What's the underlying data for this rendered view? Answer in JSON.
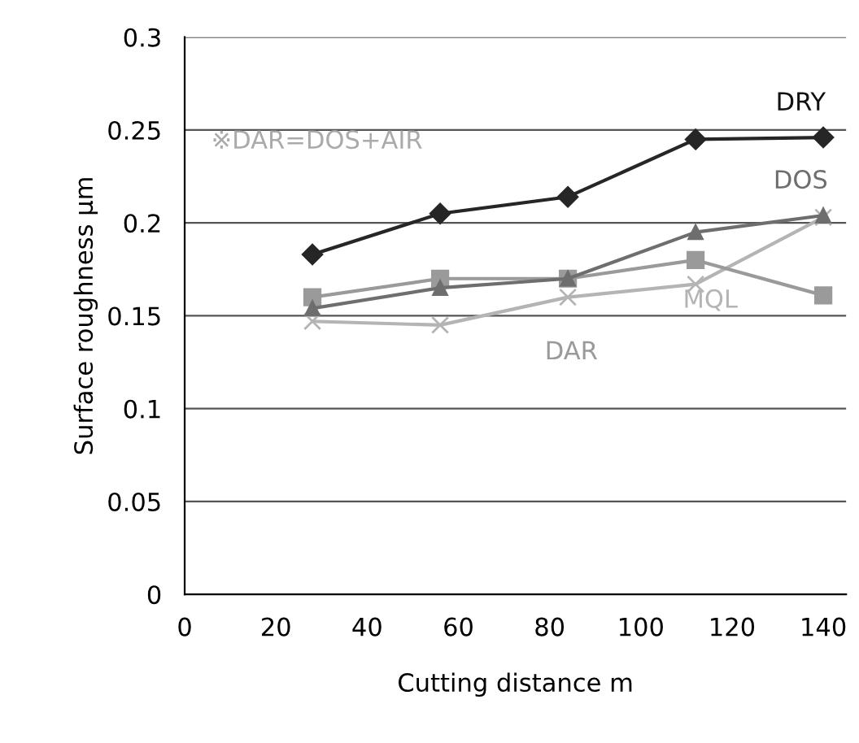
{
  "chart_data": {
    "type": "line",
    "xlabel": "Cutting distance m",
    "ylabel": "Surface roughness µm",
    "x": [
      28,
      56,
      84,
      112,
      140
    ],
    "series": [
      {
        "name": "DRY",
        "color": "#262626",
        "marker": "diamond",
        "values": [
          0.183,
          0.205,
          0.214,
          0.245,
          0.246
        ]
      },
      {
        "name": "DOS",
        "color": "#6e6e6e",
        "marker": "triangle",
        "values": [
          0.154,
          0.165,
          0.17,
          0.195,
          0.204
        ]
      },
      {
        "name": "DAR",
        "color": "#9a9a9a",
        "marker": "square",
        "values": [
          0.16,
          0.17,
          0.17,
          0.18,
          0.161
        ]
      },
      {
        "name": "MQL",
        "color": "#b4b4b4",
        "marker": "cross",
        "values": [
          0.147,
          0.145,
          0.16,
          0.167,
          0.203
        ]
      }
    ],
    "annotations": [
      "※DAR=DOS+AIR"
    ],
    "xlim": [
      0,
      145
    ],
    "xticks": [
      0,
      20,
      40,
      60,
      80,
      100,
      120,
      140
    ],
    "ylim": [
      0,
      0.3
    ],
    "yticks": [
      0,
      0.05,
      0.1,
      0.15,
      0.2,
      0.25,
      0.3
    ],
    "grid": "y",
    "legend": false
  }
}
